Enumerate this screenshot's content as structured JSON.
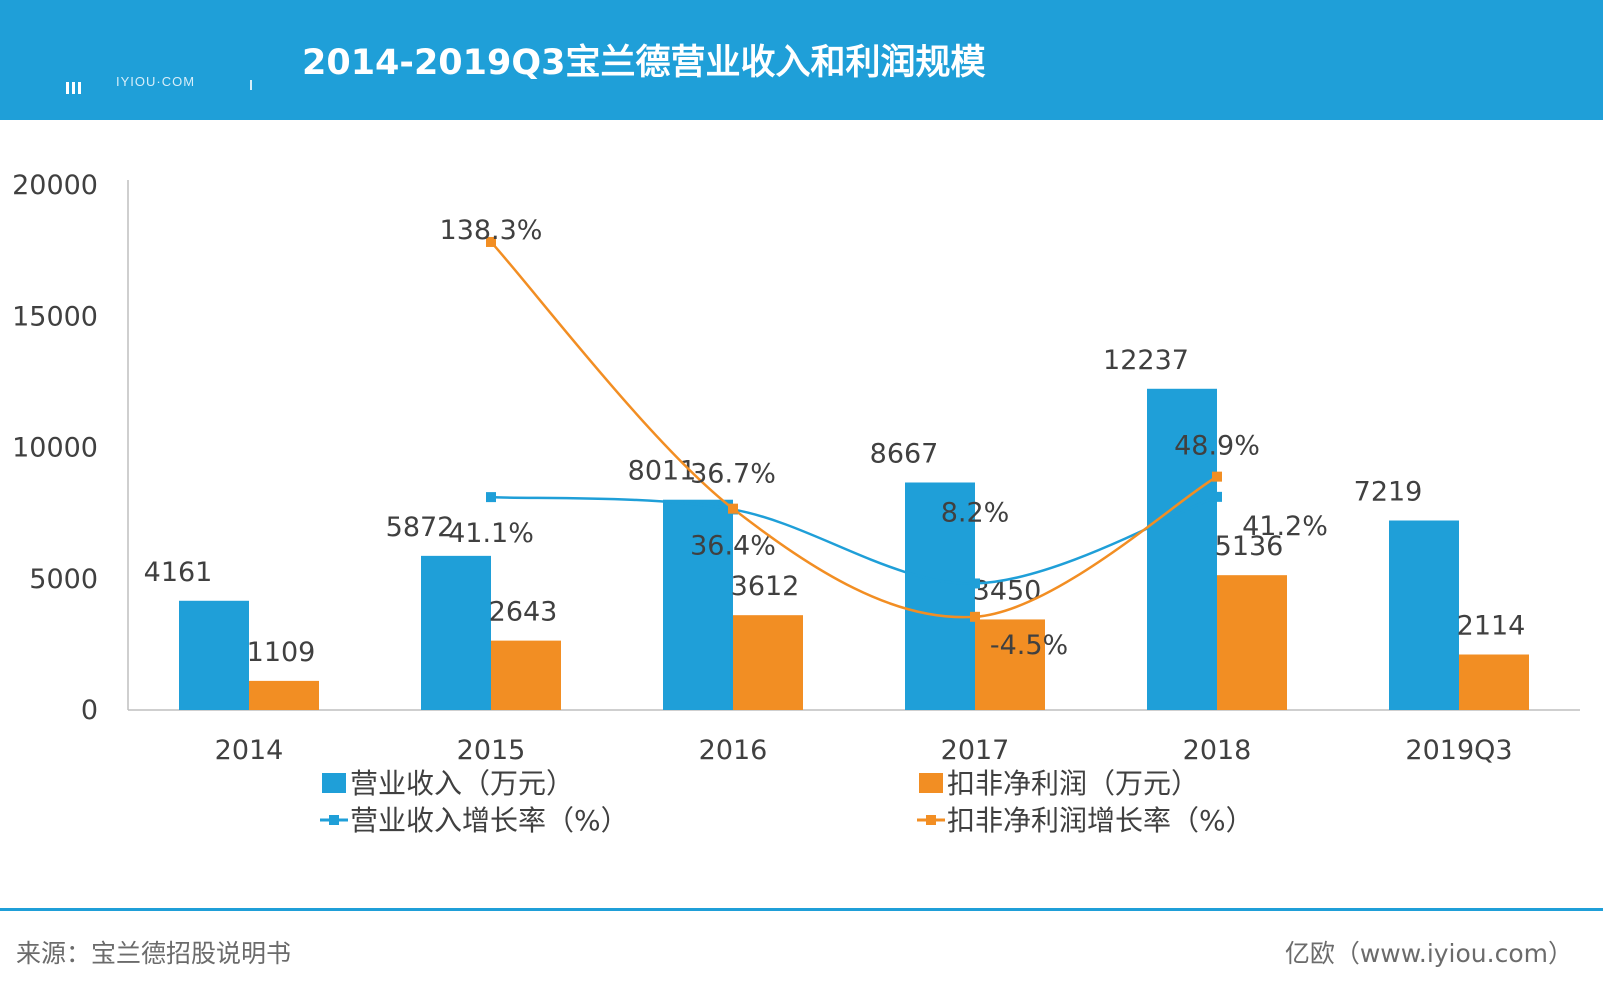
{
  "header": {
    "title": "2014-2019Q3宝兰德营业收入和利润规模",
    "logo_text": "IYIOU·COM",
    "bg_color": "#1f9fd8"
  },
  "chart_data": {
    "type": "bar",
    "categories": [
      "2014",
      "2015",
      "2016",
      "2017",
      "2018",
      "2019Q3"
    ],
    "ylim": [
      0,
      20000
    ],
    "yticks": [
      0,
      5000,
      10000,
      15000,
      20000
    ],
    "grid": false,
    "legend_position": "bottom",
    "series": [
      {
        "name": "营业收入（万元）",
        "kind": "bar",
        "color": "#1f9fd8",
        "values": [
          4161,
          5872,
          8011,
          8667,
          12237,
          7219
        ]
      },
      {
        "name": "扣非净利润（万元）",
        "kind": "bar",
        "color": "#f28e23",
        "values": [
          1109,
          2643,
          3612,
          3450,
          5136,
          2114
        ]
      },
      {
        "name": "营业收入增长率（%）",
        "kind": "line",
        "color": "#1f9fd8",
        "values": [
          null,
          41.1,
          36.4,
          8.2,
          41.2,
          null
        ],
        "labels": [
          null,
          "41.1%",
          "36.4%",
          "8.2%",
          "41.2%",
          null
        ]
      },
      {
        "name": "扣非净利润增长率（%）",
        "kind": "line",
        "color": "#f28e23",
        "values": [
          null,
          138.3,
          36.7,
          -4.5,
          48.9,
          null
        ],
        "labels": [
          null,
          "138.3%",
          "36.7%",
          "-4.5%",
          "48.9%",
          null
        ]
      }
    ]
  },
  "footer": {
    "source": "来源：宝兰德招股说明书",
    "site": "亿欧（www.iyiou.com）"
  }
}
